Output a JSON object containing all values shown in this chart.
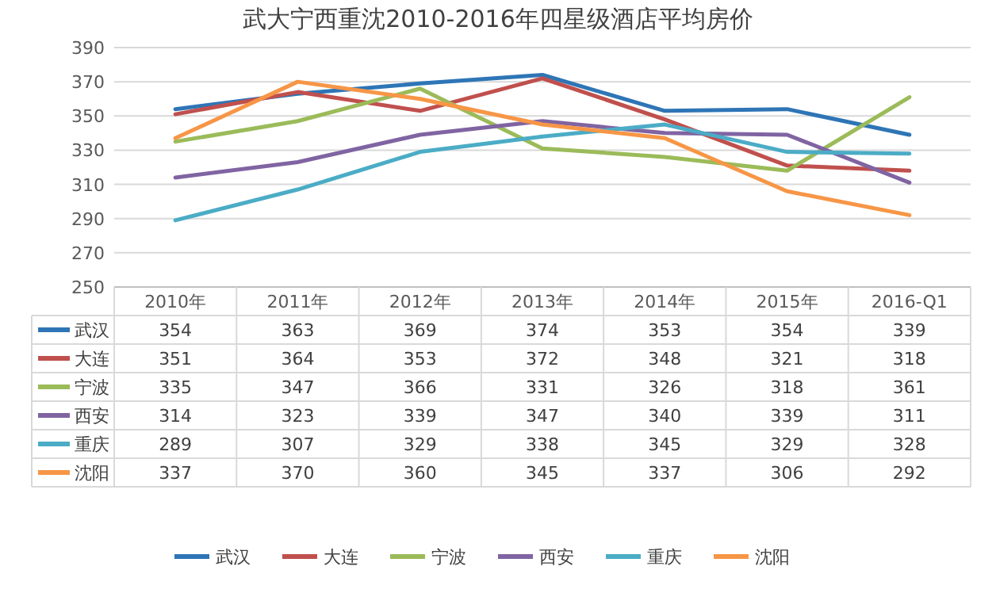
{
  "chart_data": {
    "type": "line",
    "title": "武大宁西重沈2010-2016年四星级酒店平均房价",
    "categories": [
      "2010年",
      "2011年",
      "2012年",
      "2013年",
      "2014年",
      "2015年",
      "2016-Q1"
    ],
    "series": [
      {
        "name": "武汉",
        "color": "#2e75b6",
        "values": [
          354,
          363,
          369,
          374,
          353,
          354,
          339
        ]
      },
      {
        "name": "大连",
        "color": "#c0504d",
        "values": [
          351,
          364,
          353,
          372,
          348,
          321,
          318
        ]
      },
      {
        "name": "宁波",
        "color": "#9bbb59",
        "values": [
          335,
          347,
          366,
          331,
          326,
          318,
          361
        ]
      },
      {
        "name": "西安",
        "color": "#8064a2",
        "values": [
          314,
          323,
          339,
          347,
          340,
          339,
          311
        ]
      },
      {
        "name": "重庆",
        "color": "#4bacc6",
        "values": [
          289,
          307,
          329,
          338,
          345,
          329,
          328
        ]
      },
      {
        "name": "沈阳",
        "color": "#f79646",
        "values": [
          337,
          370,
          360,
          345,
          337,
          306,
          292
        ]
      }
    ],
    "ylim": [
      250,
      390
    ],
    "yticks": [
      250,
      270,
      290,
      310,
      330,
      350,
      370,
      390
    ],
    "grid": "y",
    "legend": "bottom",
    "data_labels": true,
    "marker": "none",
    "line_style": "solid"
  }
}
